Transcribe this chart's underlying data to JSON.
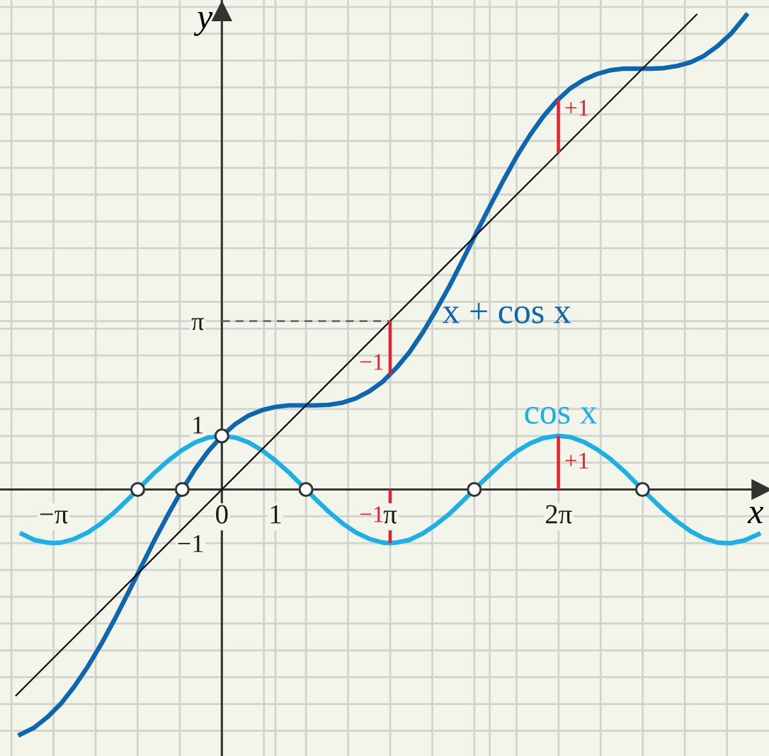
{
  "chart_data": {
    "type": "line",
    "xlabel": "x",
    "ylabel": "y",
    "xlim": [
      -4.14,
      10.21
    ],
    "ylim": [
      -4.97,
      9.13
    ],
    "grid": true,
    "xticks": [
      {
        "value": -3.927,
        "label": null
      },
      {
        "value": -3.1416,
        "label": "−π"
      },
      {
        "value": -2.356,
        "label": null
      },
      {
        "value": -1.571,
        "label": null
      },
      {
        "value": -0.785,
        "label": null
      },
      {
        "value": 0,
        "label": "0"
      },
      {
        "value": 0.785,
        "label": null
      },
      {
        "value": 1,
        "label": "1"
      },
      {
        "value": 1.571,
        "label": null
      },
      {
        "value": 2.356,
        "label": null
      },
      {
        "value": 3.1416,
        "label": "π"
      },
      {
        "value": 3.927,
        "label": null
      },
      {
        "value": 4.712,
        "label": null
      },
      {
        "value": 5,
        "label": null
      },
      {
        "value": 5.498,
        "label": null
      },
      {
        "value": 6.2832,
        "label": "2π"
      },
      {
        "value": 7.069,
        "label": null
      },
      {
        "value": 7.854,
        "label": null
      },
      {
        "value": 8.639,
        "label": null
      },
      {
        "value": 9.425,
        "label": null
      }
    ],
    "yticks": [
      {
        "value": -4.5,
        "label": null
      },
      {
        "value": -4,
        "label": null
      },
      {
        "value": -3.5,
        "label": null
      },
      {
        "value": -3,
        "label": null
      },
      {
        "value": -2.5,
        "label": null
      },
      {
        "value": -2,
        "label": null
      },
      {
        "value": -1.5,
        "label": null
      },
      {
        "value": -1,
        "label": "−1"
      },
      {
        "value": -0.5,
        "label": null
      },
      {
        "value": 0,
        "label": null
      },
      {
        "value": 0.5,
        "label": null
      },
      {
        "value": 1,
        "label": "1"
      },
      {
        "value": 1.5,
        "label": null
      },
      {
        "value": 2,
        "label": null
      },
      {
        "value": 2.5,
        "label": null
      },
      {
        "value": 3,
        "label": null
      },
      {
        "value": 3.1416,
        "label": "π"
      },
      {
        "value": 3.5,
        "label": null
      },
      {
        "value": 4,
        "label": null
      },
      {
        "value": 4.5,
        "label": null
      },
      {
        "value": 5,
        "label": null
      },
      {
        "value": 5.5,
        "label": null
      },
      {
        "value": 6,
        "label": null
      },
      {
        "value": 6.5,
        "label": null
      },
      {
        "value": 7,
        "label": null
      },
      {
        "value": 7.5,
        "label": null
      },
      {
        "value": 8,
        "label": null
      },
      {
        "value": 8.5,
        "label": null
      },
      {
        "value": 9,
        "label": null
      }
    ],
    "series": [
      {
        "name": "x + cos x",
        "color": "#0d66b0",
        "x": [
          -3.8,
          -3.5,
          -3.25,
          -3,
          -2.75,
          -2.5,
          -2.25,
          -2,
          -1.75,
          -1.5,
          -1.25,
          -1,
          -0.75,
          -0.5,
          -0.25,
          0,
          0.25,
          0.5,
          0.75,
          1,
          1.25,
          1.5,
          1.75,
          2,
          2.25,
          2.5,
          2.75,
          3,
          3.25,
          3.5,
          3.75,
          4,
          4.25,
          4.5,
          4.75,
          5,
          5.25,
          5.5,
          5.75,
          6,
          6.25,
          6.5,
          6.75,
          7,
          7.25,
          7.5,
          7.75,
          8,
          8.25,
          8.5,
          8.75,
          9,
          9.25,
          9.5,
          9.75,
          9.81
        ],
        "values": [
          -4.59,
          -4.44,
          -4.24,
          -3.99,
          -3.67,
          -3.3,
          -2.88,
          -2.42,
          -1.93,
          -1.43,
          -0.93,
          -0.46,
          -0.02,
          0.38,
          0.72,
          1,
          1.22,
          1.38,
          1.48,
          1.54,
          1.57,
          1.57,
          1.57,
          1.58,
          1.62,
          1.7,
          1.83,
          2.01,
          2.26,
          2.56,
          2.93,
          3.35,
          3.8,
          4.29,
          4.79,
          5.28,
          5.76,
          6.21,
          6.61,
          6.96,
          7.25,
          7.48,
          7.64,
          7.75,
          7.82,
          7.85,
          7.85,
          7.85,
          7.86,
          7.9,
          7.97,
          8.09,
          8.27,
          8.5,
          8.8,
          8.88
        ]
      },
      {
        "name": "cos x",
        "color": "#1cb1e6",
        "x": [
          -3.77,
          -3.5,
          -3.25,
          -3.14,
          -3,
          -2.75,
          -2.5,
          -2.25,
          -2,
          -1.75,
          -1.5,
          -1.25,
          -1,
          -0.75,
          -0.5,
          -0.25,
          0,
          0.25,
          0.5,
          0.75,
          1,
          1.25,
          1.5,
          1.75,
          2,
          2.25,
          2.5,
          2.75,
          3,
          3.14,
          3.25,
          3.5,
          3.75,
          4,
          4.25,
          4.5,
          4.75,
          5,
          5.25,
          5.5,
          5.75,
          6,
          6.25,
          6.28,
          6.5,
          6.75,
          7,
          7.25,
          7.5,
          7.75,
          8,
          8.25,
          8.5,
          8.75,
          9,
          9.25,
          9.42,
          9.5,
          9.75,
          10,
          10.05
        ],
        "values": [
          -0.81,
          -0.94,
          -0.99,
          -1,
          -0.99,
          -0.92,
          -0.8,
          -0.63,
          -0.42,
          -0.18,
          0.07,
          0.32,
          0.54,
          0.73,
          0.88,
          0.97,
          1,
          0.97,
          0.88,
          0.73,
          0.54,
          0.32,
          0.07,
          -0.18,
          -0.42,
          -0.63,
          -0.8,
          -0.92,
          -0.99,
          -1,
          -0.99,
          -0.94,
          -0.82,
          -0.65,
          -0.45,
          -0.21,
          0.04,
          0.28,
          0.51,
          0.71,
          0.86,
          0.96,
          1,
          1,
          0.98,
          0.89,
          0.75,
          0.57,
          0.35,
          0.1,
          -0.15,
          -0.39,
          -0.6,
          -0.78,
          -0.91,
          -0.99,
          -1,
          -1,
          -0.95,
          -0.84,
          -0.81
        ]
      },
      {
        "color": "#111111",
        "x": [
          -3.85,
          8.87
        ],
        "values": [
          -3.85,
          8.87
        ]
      },
      {
        "name": "−1",
        "color": "#e5202e",
        "x": [
          3.14,
          3.14
        ],
        "values": [
          0,
          -1
        ]
      },
      {
        "name": "+1",
        "color": "#e5202e",
        "x": [
          6.28,
          6.28
        ],
        "values": [
          0,
          1
        ]
      },
      {
        "name": "−1",
        "color": "#e5202e",
        "x": [
          3.14,
          3.14
        ],
        "values": [
          3.14,
          2.14
        ]
      },
      {
        "name": "+1",
        "color": "#e5202e",
        "x": [
          6.28,
          6.28
        ],
        "values": [
          6.28,
          7.28
        ]
      },
      {
        "color": "#6b6b6b",
        "line_style": "dashed",
        "x": [
          0,
          3.14
        ],
        "values": [
          3.14,
          3.14
        ]
      },
      {
        "type": "scatter",
        "marker": "circle",
        "color": "#333333",
        "x": [
          -1.57,
          -0.74,
          0,
          1.57,
          4.71,
          7.85
        ],
        "values": [
          0,
          0,
          1,
          0,
          0,
          0
        ]
      }
    ]
  }
}
